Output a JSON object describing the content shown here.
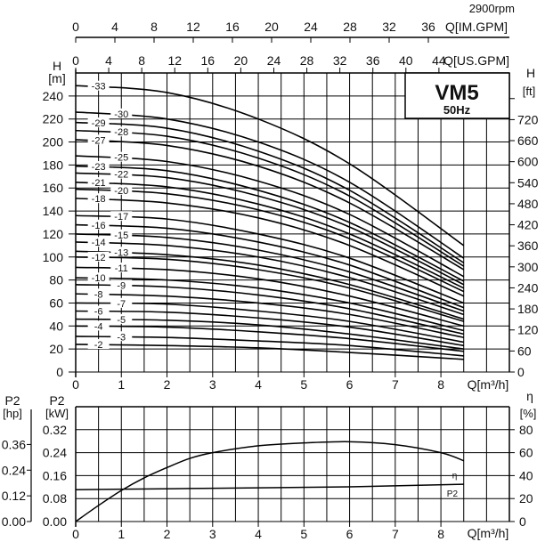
{
  "header": {
    "speed": "2900rpm",
    "model": "VM5",
    "frequency": "50Hz"
  },
  "chart_data": [
    {
      "type": "line",
      "xlabel": "Q[m³/h]",
      "ylabel": "H [m]",
      "ylabel_left_unit": "[m]",
      "ylabel_left": "H",
      "ylabel_right": "H",
      "ylabel_right_unit": "[ft]",
      "secondary_x_top1": {
        "label": "Q[IM.GPM]",
        "ticks": [
          0,
          4,
          8,
          12,
          16,
          20,
          24,
          28,
          32,
          36
        ]
      },
      "secondary_x_top2": {
        "label": "Q[US.GPM]",
        "ticks": [
          0,
          4,
          8,
          12,
          16,
          20,
          24,
          28,
          32,
          36,
          40,
          44
        ]
      },
      "xlim": [
        0,
        9.5
      ],
      "ylim": [
        0,
        260
      ],
      "xticks": [
        0,
        1,
        2,
        3,
        4,
        5,
        6,
        7,
        8
      ],
      "yticks": [
        0,
        20,
        40,
        60,
        80,
        100,
        120,
        140,
        160,
        180,
        200,
        220,
        240
      ],
      "yticks_right_ft": [
        0,
        60,
        120,
        180,
        240,
        300,
        360,
        420,
        480,
        540,
        600,
        660,
        720
      ],
      "grid": true,
      "x": [
        0,
        2,
        4,
        6,
        8.5
      ],
      "series": [
        {
          "name": "-33",
          "values": [
            249,
            243,
            220,
            181,
            110
          ]
        },
        {
          "name": "-30",
          "values": [
            226,
            220,
            200,
            165,
            99
          ]
        },
        {
          "name": "-29",
          "values": [
            217,
            212,
            192,
            158,
            95
          ]
        },
        {
          "name": "-28",
          "values": [
            210,
            205,
            186,
            153,
            92
          ]
        },
        {
          "name": "-27",
          "values": [
            202,
            197,
            179,
            147,
            89
          ]
        },
        {
          "name": "-25",
          "values": [
            188,
            183,
            166,
            137,
            83
          ]
        },
        {
          "name": "-23",
          "values": [
            179,
            175,
            158,
            130,
            79
          ]
        },
        {
          "name": "-22",
          "values": [
            173,
            169,
            153,
            126,
            76
          ]
        },
        {
          "name": "-21",
          "values": [
            165,
            161,
            146,
            120,
            73
          ]
        },
        {
          "name": "-20",
          "values": [
            159,
            155,
            141,
            116,
            70
          ]
        },
        {
          "name": "-18",
          "values": [
            151,
            147,
            134,
            110,
            66
          ]
        },
        {
          "name": "-17",
          "values": [
            136,
            133,
            120,
            99,
            60
          ]
        },
        {
          "name": "-16",
          "values": [
            128,
            125,
            113,
            93,
            56
          ]
        },
        {
          "name": "-15",
          "values": [
            120,
            117,
            106,
            87,
            53
          ]
        },
        {
          "name": "-14",
          "values": [
            113,
            110,
            100,
            82,
            50
          ]
        },
        {
          "name": "-13",
          "values": [
            105,
            102,
            93,
            76,
            46
          ]
        },
        {
          "name": "-12",
          "values": [
            100,
            98,
            89,
            73,
            44
          ]
        },
        {
          "name": "-11",
          "values": [
            91,
            89,
            81,
            66,
            40
          ]
        },
        {
          "name": "-10",
          "values": [
            82,
            80,
            73,
            60,
            36
          ]
        },
        {
          "name": "-9",
          "values": [
            76,
            74,
            67,
            55,
            33
          ]
        },
        {
          "name": "-8",
          "values": [
            68,
            66,
            60,
            50,
            30
          ]
        },
        {
          "name": "-7",
          "values": [
            60,
            59,
            53,
            44,
            26
          ]
        },
        {
          "name": "-6",
          "values": [
            53,
            52,
            47,
            39,
            23
          ]
        },
        {
          "name": "-5",
          "values": [
            46,
            45,
            41,
            33,
            20
          ]
        },
        {
          "name": "-4",
          "values": [
            40,
            39,
            35,
            29,
            18
          ]
        },
        {
          "name": "-3",
          "values": [
            31,
            30,
            27,
            23,
            14
          ]
        },
        {
          "name": "-2",
          "values": [
            24,
            23,
            21,
            17,
            11
          ]
        }
      ]
    },
    {
      "type": "line",
      "xlabel": "Q[m³/h]",
      "ylabel_kw": "P2",
      "ylabel_kw_unit": "[kW]",
      "ylabel_hp": "P2",
      "ylabel_hp_unit": "[hp]",
      "ylabel_eff": "η",
      "ylabel_eff_unit": "[%]",
      "xlim": [
        0,
        9.5
      ],
      "xticks": [
        0,
        1,
        2,
        3,
        4,
        5,
        6,
        7,
        8
      ],
      "ylim_kw": [
        0,
        0.4
      ],
      "yticks_kw": [
        "0.00",
        "0.08",
        "0.16",
        "0.24",
        "0.32"
      ],
      "yticks_hp": [
        "0.00",
        "0.12",
        "0.24",
        "0.36"
      ],
      "ylim_eff": [
        0,
        100
      ],
      "yticks_eff": [
        0,
        20,
        40,
        60,
        80
      ],
      "grid": true,
      "series": [
        {
          "name": "η",
          "unit": "%",
          "x": [
            0,
            0.5,
            1,
            1.5,
            2,
            2.5,
            3,
            4,
            5,
            6,
            7,
            8,
            8.5
          ],
          "values": [
            0,
            14,
            27,
            38,
            47,
            55,
            60,
            66,
            68.5,
            69.5,
            67,
            60,
            53
          ]
        },
        {
          "name": "P2",
          "unit": "kW",
          "x": [
            0,
            2.5,
            6,
            8.5
          ],
          "values": [
            0.111,
            0.115,
            0.121,
            0.13
          ]
        }
      ]
    }
  ]
}
